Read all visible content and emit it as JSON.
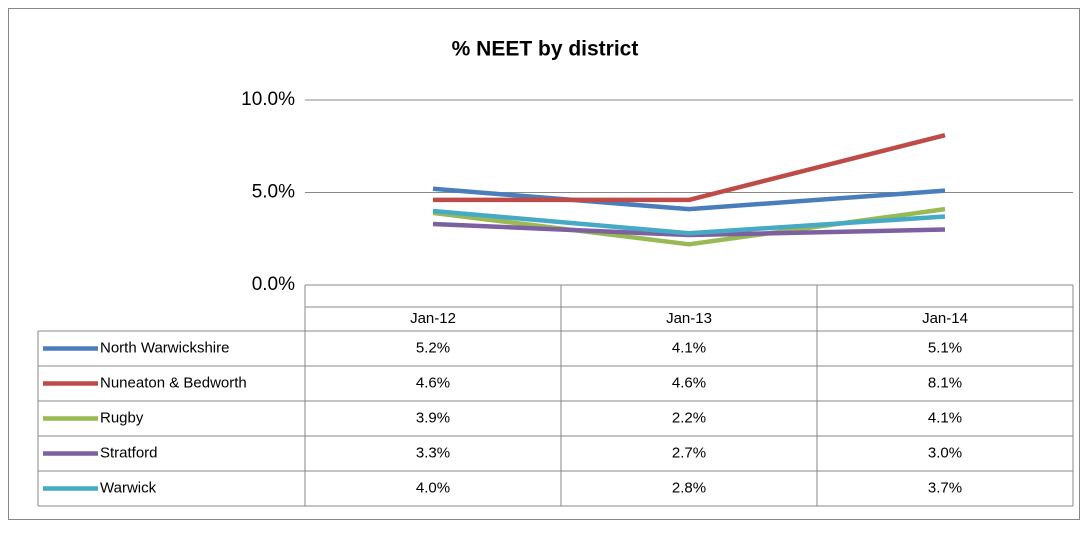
{
  "chart_data": {
    "type": "line",
    "title": "% NEET by district",
    "categories": [
      "Jan-12",
      "Jan-13",
      "Jan-14"
    ],
    "series": [
      {
        "name": "North Warwickshire",
        "color": "#4a7ebb",
        "values": [
          5.2,
          4.1,
          5.1
        ],
        "value_labels": [
          "5.2%",
          "4.1%",
          "5.1%"
        ]
      },
      {
        "name": "Nuneaton & Bedworth",
        "color": "#be4b48",
        "values": [
          4.6,
          4.6,
          8.1
        ],
        "value_labels": [
          "4.6%",
          "4.6%",
          "8.1%"
        ]
      },
      {
        "name": "Rugby",
        "color": "#98b954",
        "values": [
          3.9,
          2.2,
          4.1
        ],
        "value_labels": [
          "3.9%",
          "2.2%",
          "4.1%"
        ]
      },
      {
        "name": "Stratford",
        "color": "#7d60a0",
        "values": [
          3.3,
          2.7,
          3.0
        ],
        "value_labels": [
          "3.3%",
          "2.7%",
          "3.0%"
        ]
      },
      {
        "name": "Warwick",
        "color": "#46aac5",
        "values": [
          4.0,
          2.8,
          3.7
        ],
        "value_labels": [
          "4.0%",
          "2.8%",
          "3.7%"
        ]
      }
    ],
    "ylim": [
      0,
      10
    ],
    "yticks": [
      {
        "value": 0,
        "label": "0.0%"
      },
      {
        "value": 5,
        "label": "5.0%"
      },
      {
        "value": 10,
        "label": "10.0%"
      }
    ],
    "grid": true
  }
}
